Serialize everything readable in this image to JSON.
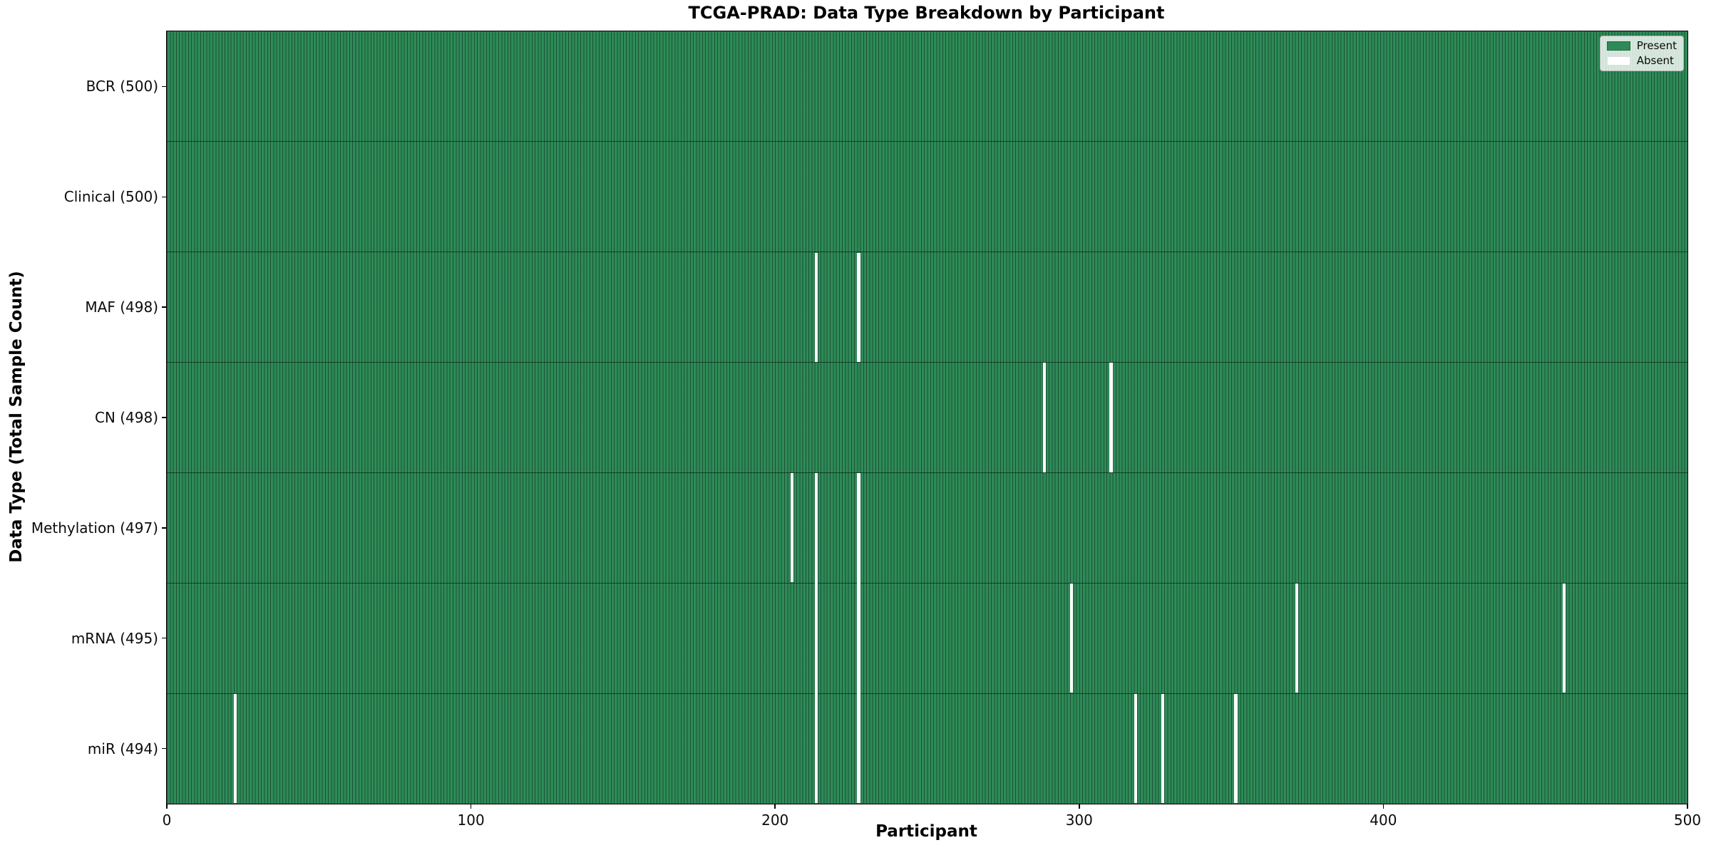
{
  "legend": [
    {
      "label": "Present",
      "color": "#2e8b57"
    },
    {
      "label": "Absent",
      "color": "#ffffff"
    }
  ],
  "chart_data": {
    "type": "heatmap",
    "title": "TCGA-PRAD: Data Type Breakdown by Participant",
    "xlabel": "Participant",
    "ylabel": "Data Type (Total Sample Count)",
    "x_range": [
      0,
      500
    ],
    "n_participants": 500,
    "x_ticks": [
      0,
      100,
      200,
      300,
      400,
      500
    ],
    "present_color": "#2e8b57",
    "absent_color": "#ffffff",
    "grid": false,
    "legend_position": "upper right",
    "rows": [
      {
        "label": "BCR (500)",
        "data_type": "BCR",
        "total": 500,
        "absent_participants": []
      },
      {
        "label": "Clinical (500)",
        "data_type": "Clinical",
        "total": 500,
        "absent_participants": []
      },
      {
        "label": "MAF (498)",
        "data_type": "MAF",
        "total": 498,
        "absent_participants": [
          213,
          227
        ]
      },
      {
        "label": "CN (498)",
        "data_type": "CN",
        "total": 498,
        "absent_participants": [
          288,
          310
        ]
      },
      {
        "label": "Methylation (497)",
        "data_type": "Methylation",
        "total": 497,
        "absent_participants": [
          205,
          213,
          227
        ]
      },
      {
        "label": "mRNA (495)",
        "data_type": "mRNA",
        "total": 495,
        "absent_participants": [
          213,
          227,
          297,
          371,
          459
        ]
      },
      {
        "label": "miR (494)",
        "data_type": "miR",
        "total": 494,
        "absent_participants": [
          22,
          213,
          227,
          318,
          327,
          351
        ]
      }
    ]
  }
}
